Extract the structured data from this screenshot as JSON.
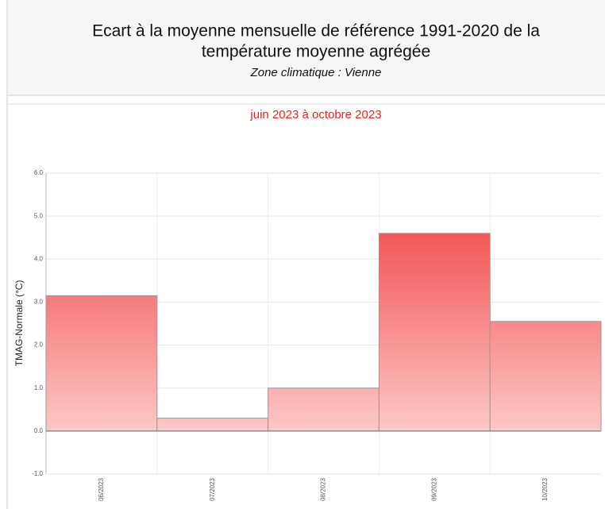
{
  "chart_data": {
    "type": "bar",
    "title": "Ecart à la moyenne mensuelle de référence 1991-2020 de la température moyenne  agrégée",
    "title_lines": [
      "Ecart à la moyenne mensuelle de référence 1991-2020 de la",
      "température moyenne  agrégée"
    ],
    "zone": "Zone climatique : Vienne",
    "subtitle": "juin 2023 à octobre 2023",
    "y_label": "TMAG-Normale (°C)",
    "categories": [
      "06/2023",
      "07/2023",
      "08/2023",
      "09/2023",
      "10/2023"
    ],
    "values": [
      3.15,
      0.3,
      1.0,
      4.6,
      2.55
    ],
    "color": "#f03434",
    "ylim": [
      -1,
      6
    ],
    "yticks": [
      {
        "value": -1,
        "label": "-1.0"
      },
      {
        "value": 0,
        "label": "0.0"
      },
      {
        "value": 1,
        "label": "1.0"
      },
      {
        "value": 2,
        "label": "2.0"
      },
      {
        "value": 3,
        "label": "3.0"
      },
      {
        "value": 4,
        "label": "4.0"
      },
      {
        "value": 5,
        "label": "5.0"
      },
      {
        "value": 6,
        "label": "6.0"
      }
    ],
    "grid": true
  }
}
